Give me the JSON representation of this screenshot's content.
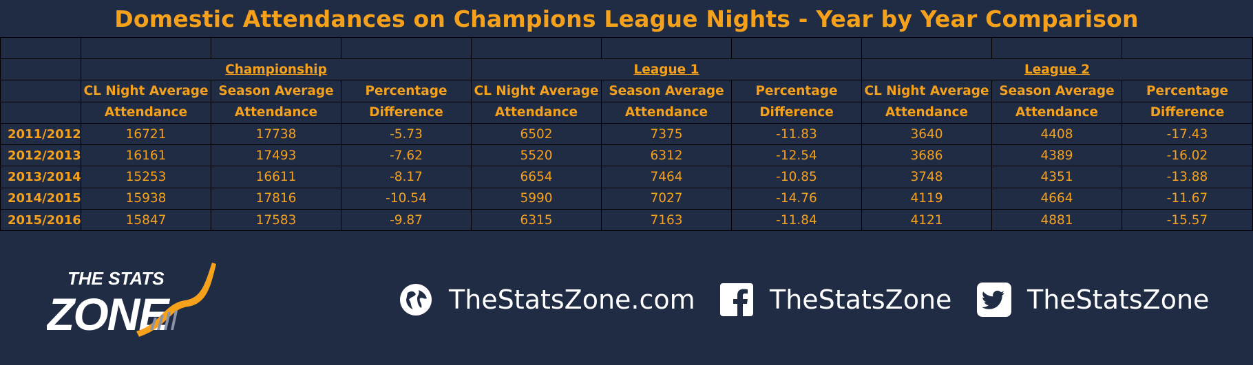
{
  "title": "Domestic Attendances on Champions League Nights - Year by Year Comparison",
  "groups": [
    "Championship",
    "League 1",
    "League 2"
  ],
  "subheaders": {
    "line1": [
      "CL Night Average",
      "Season Average",
      "Percentage",
      "CL Night Average",
      "Season Average",
      "Percentage",
      "CL Night Average",
      "Season Average",
      "Percentage"
    ],
    "line2": [
      "Attendance",
      "Attendance",
      "Difference",
      "Attendance",
      "Attendance",
      "Difference",
      "Attendance",
      "Attendance",
      "Difference"
    ]
  },
  "rows": [
    {
      "season": "2011/2012",
      "values": [
        "16721",
        "17738",
        "-5.73",
        "6502",
        "7375",
        "-11.83",
        "3640",
        "4408",
        "-17.43"
      ]
    },
    {
      "season": "2012/2013",
      "values": [
        "16161",
        "17493",
        "-7.62",
        "5520",
        "6312",
        "-12.54",
        "3686",
        "4389",
        "-16.02"
      ]
    },
    {
      "season": "2013/2014",
      "values": [
        "15253",
        "16611",
        "-8.17",
        "6654",
        "7464",
        "-10.85",
        "3748",
        "4351",
        "-13.88"
      ]
    },
    {
      "season": "2014/2015",
      "values": [
        "15938",
        "17816",
        "-10.54",
        "5990",
        "7027",
        "-14.76",
        "4119",
        "4664",
        "-11.67"
      ]
    },
    {
      "season": "2015/2016",
      "values": [
        "15847",
        "17583",
        "-9.87",
        "6315",
        "7163",
        "-11.84",
        "4121",
        "4881",
        "-15.57"
      ]
    }
  ],
  "logo": {
    "line1": "THE STATS",
    "line2": "ZONE"
  },
  "social": {
    "website": "TheStatsZone.com",
    "facebook": "TheStatsZone",
    "twitter": "TheStatsZone"
  },
  "colors": {
    "background": "#202b44",
    "accent": "#f5a11c",
    "text_white": "#ffffff"
  },
  "icons": [
    "globe-icon",
    "facebook-icon",
    "twitter-icon"
  ]
}
